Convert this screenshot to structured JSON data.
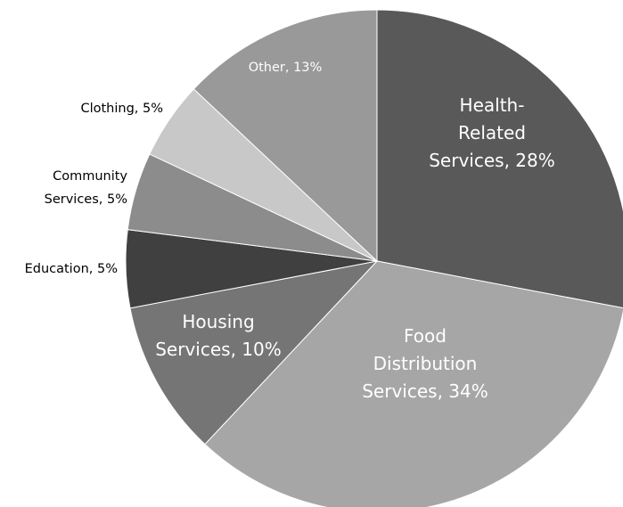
{
  "chart_data": {
    "type": "pie",
    "title": "",
    "start_angle_deg": 0,
    "direction": "clockwise",
    "legend": "none",
    "slices": [
      {
        "label": "Health-Related Services",
        "value": 28,
        "color": "#595959",
        "lines": [
          "Health-",
          "Related",
          "Services, 28%"
        ],
        "label_color": "#ffffff",
        "label_style": "big"
      },
      {
        "label": "Food Distribution Services",
        "value": 34,
        "color": "#a6a6a6",
        "lines": [
          "Food",
          "Distribution",
          "Services, 34%"
        ],
        "label_color": "#ffffff",
        "label_style": "big"
      },
      {
        "label": "Housing Services",
        "value": 10,
        "color": "#757575",
        "lines": [
          "Housing",
          "Services, 10%"
        ],
        "label_color": "#ffffff",
        "label_style": "big"
      },
      {
        "label": "Education",
        "value": 5,
        "color": "#404040",
        "lines": [
          "Education, 5%"
        ],
        "label_color": "#000000",
        "label_style": "small"
      },
      {
        "label": "Community Services",
        "value": 5,
        "color": "#8c8c8c",
        "lines": [
          "Community",
          "Services, 5%"
        ],
        "label_color": "#000000",
        "label_style": "small"
      },
      {
        "label": "Clothing",
        "value": 5,
        "color": "#c8c8c8",
        "lines": [
          "Clothing, 5%"
        ],
        "label_color": "#000000",
        "label_style": "small"
      },
      {
        "label": "Other",
        "value": 13,
        "color": "#999999",
        "lines": [
          "Other, 13%"
        ],
        "label_color": "#ffffff",
        "label_style": "small"
      }
    ]
  }
}
